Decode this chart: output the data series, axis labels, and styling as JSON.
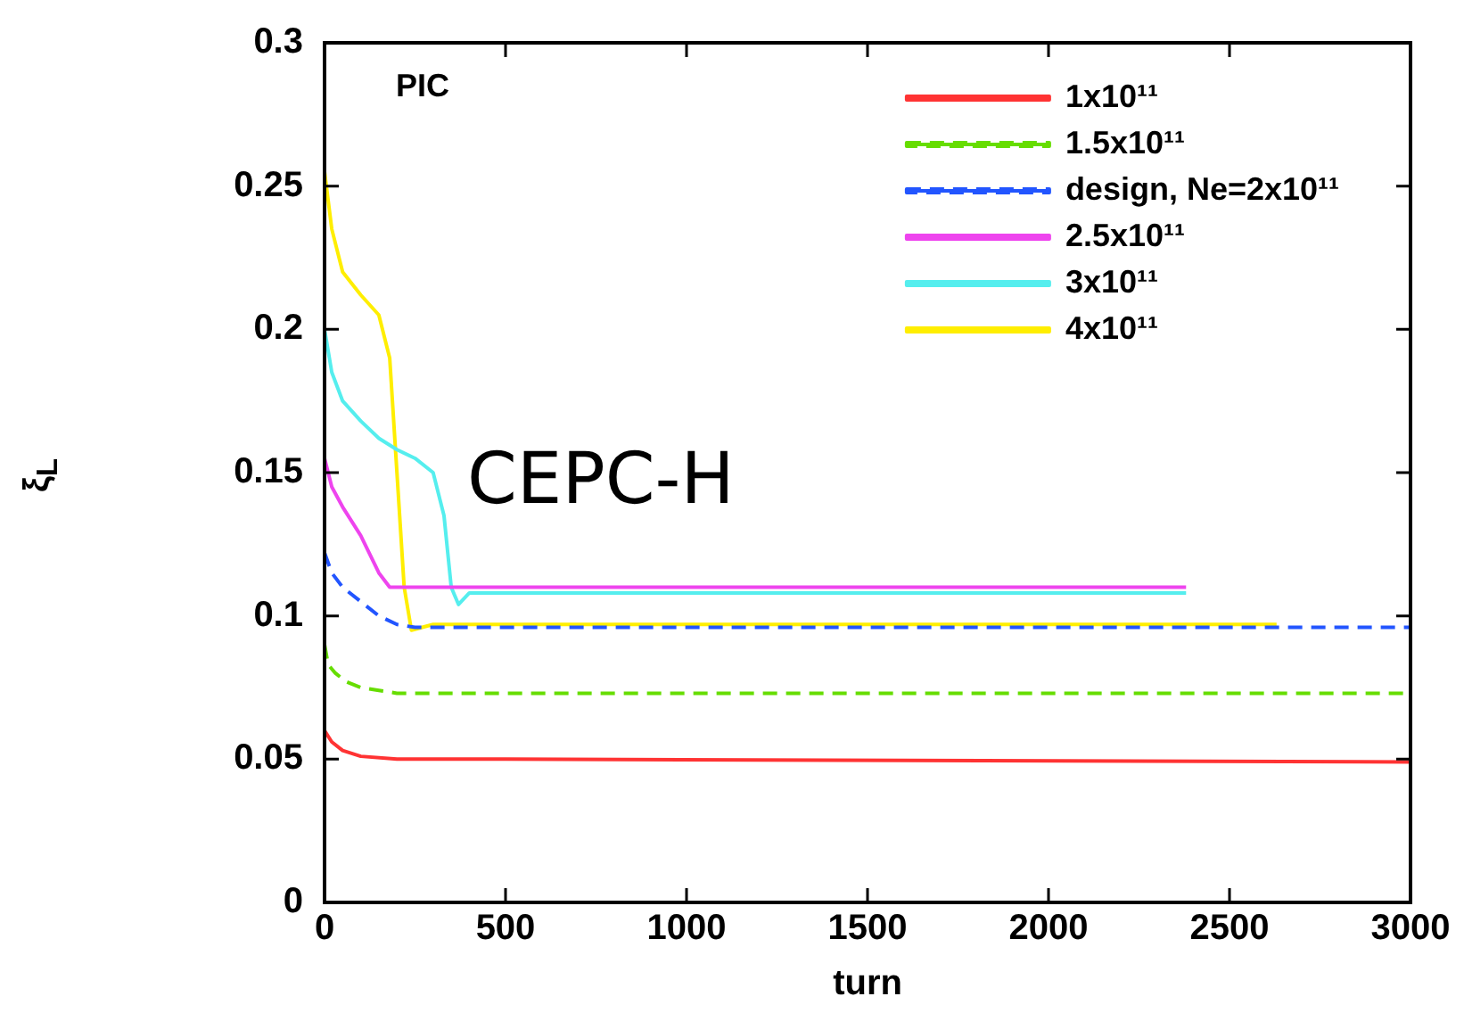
{
  "chart_data": {
    "type": "line",
    "xlabel": "turn",
    "ylabel": "ξ$_{L}$",
    "xlim": [
      0,
      3000
    ],
    "xticks": [
      0,
      500,
      1000,
      1500,
      2000,
      2500,
      3000
    ],
    "ylim": [
      0,
      0.3
    ],
    "yticks": [
      0,
      0.05,
      0.1,
      0.15,
      0.2,
      0.25,
      0.3
    ],
    "grid": false,
    "legend": "top right",
    "marker": "none",
    "annotations": [
      "PIC",
      "CEPC-H"
    ],
    "series": [
      {
        "name": "1x10¹¹",
        "color": "#ff3333",
        "line_style": "solid",
        "x": [
          0,
          20,
          50,
          100,
          200,
          500,
          3000
        ],
        "values": [
          0.06,
          0.056,
          0.053,
          0.051,
          0.05,
          0.05,
          0.049
        ]
      },
      {
        "name": "1.5x10¹¹",
        "color": "#66dd00",
        "line_style": "dashed",
        "x": [
          0,
          10,
          30,
          60,
          100,
          150,
          200,
          3000
        ],
        "values": [
          0.09,
          0.083,
          0.08,
          0.077,
          0.075,
          0.074,
          0.073,
          0.073
        ]
      },
      {
        "name": "design, Ne=2x10¹¹",
        "color": "#2255ff",
        "line_style": "dashed",
        "x": [
          0,
          20,
          50,
          100,
          150,
          200,
          250,
          3000
        ],
        "values": [
          0.122,
          0.115,
          0.11,
          0.105,
          0.1,
          0.097,
          0.096,
          0.096
        ]
      },
      {
        "name": "2.5x10¹¹",
        "color": "#ee44ee",
        "line_style": "solid",
        "x": [
          0,
          20,
          50,
          100,
          150,
          180,
          2380
        ],
        "values": [
          0.155,
          0.145,
          0.138,
          0.128,
          0.115,
          0.11,
          0.11
        ]
      },
      {
        "name": "3x10¹¹",
        "color": "#55eeee",
        "line_style": "solid",
        "x": [
          0,
          20,
          50,
          100,
          150,
          200,
          250,
          300,
          330,
          350,
          370,
          400,
          2380
        ],
        "values": [
          0.2,
          0.185,
          0.175,
          0.168,
          0.162,
          0.158,
          0.155,
          0.15,
          0.135,
          0.11,
          0.104,
          0.108,
          0.108
        ]
      },
      {
        "name": "4x10¹¹",
        "color": "#ffee00",
        "line_style": "solid",
        "x": [
          0,
          20,
          50,
          100,
          150,
          180,
          200,
          220,
          240,
          300,
          2630
        ],
        "values": [
          0.255,
          0.235,
          0.22,
          0.212,
          0.205,
          0.19,
          0.15,
          0.11,
          0.095,
          0.097,
          0.097
        ]
      }
    ]
  }
}
